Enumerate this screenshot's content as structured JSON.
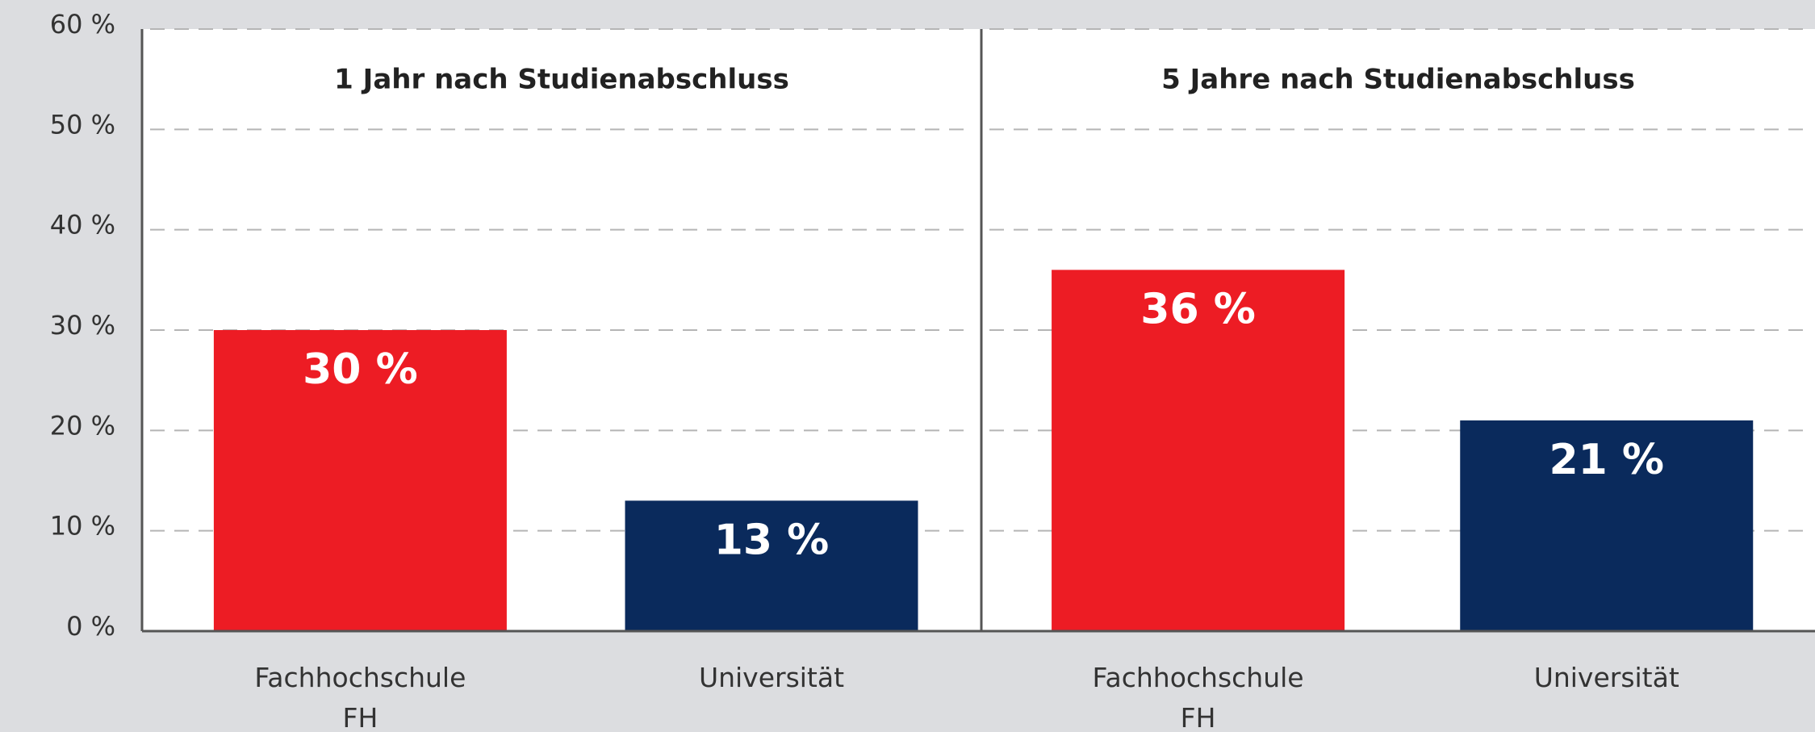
{
  "chart_data": [
    {
      "type": "bar",
      "title": "1 Jahr nach Studienabschluss",
      "categories": [
        "Fachhochschule\nFH",
        "Universität"
      ],
      "values": [
        30,
        13
      ],
      "value_labels": [
        "30 %",
        "13 %"
      ],
      "colors": [
        "#ed1c24",
        "#0a2a5c"
      ],
      "ylim": [
        0,
        60
      ],
      "yticks": [
        {
          "value": 0,
          "label": "0 %"
        },
        {
          "value": 10,
          "label": "10 %"
        },
        {
          "value": 20,
          "label": "20 %"
        },
        {
          "value": 30,
          "label": "30 %"
        },
        {
          "value": 40,
          "label": "40 %"
        },
        {
          "value": 50,
          "label": "50 %"
        },
        {
          "value": 60,
          "label": "60 %"
        }
      ],
      "grid": true
    },
    {
      "type": "bar",
      "title": "5 Jahre nach Studienabschluss",
      "categories": [
        "Fachhochschule\nFH",
        "Universität"
      ],
      "values": [
        36,
        21
      ],
      "value_labels": [
        "36 %",
        "21 %"
      ],
      "colors": [
        "#ed1c24",
        "#0a2a5c"
      ],
      "ylim": [
        0,
        60
      ],
      "yticks": [
        {
          "value": 0,
          "label": "0 %"
        },
        {
          "value": 10,
          "label": "10 %"
        },
        {
          "value": 20,
          "label": "20 %"
        },
        {
          "value": 30,
          "label": "30 %"
        },
        {
          "value": 40,
          "label": "40 %"
        },
        {
          "value": 50,
          "label": "50 %"
        },
        {
          "value": 60,
          "label": "60 %"
        }
      ],
      "grid": true
    }
  ]
}
